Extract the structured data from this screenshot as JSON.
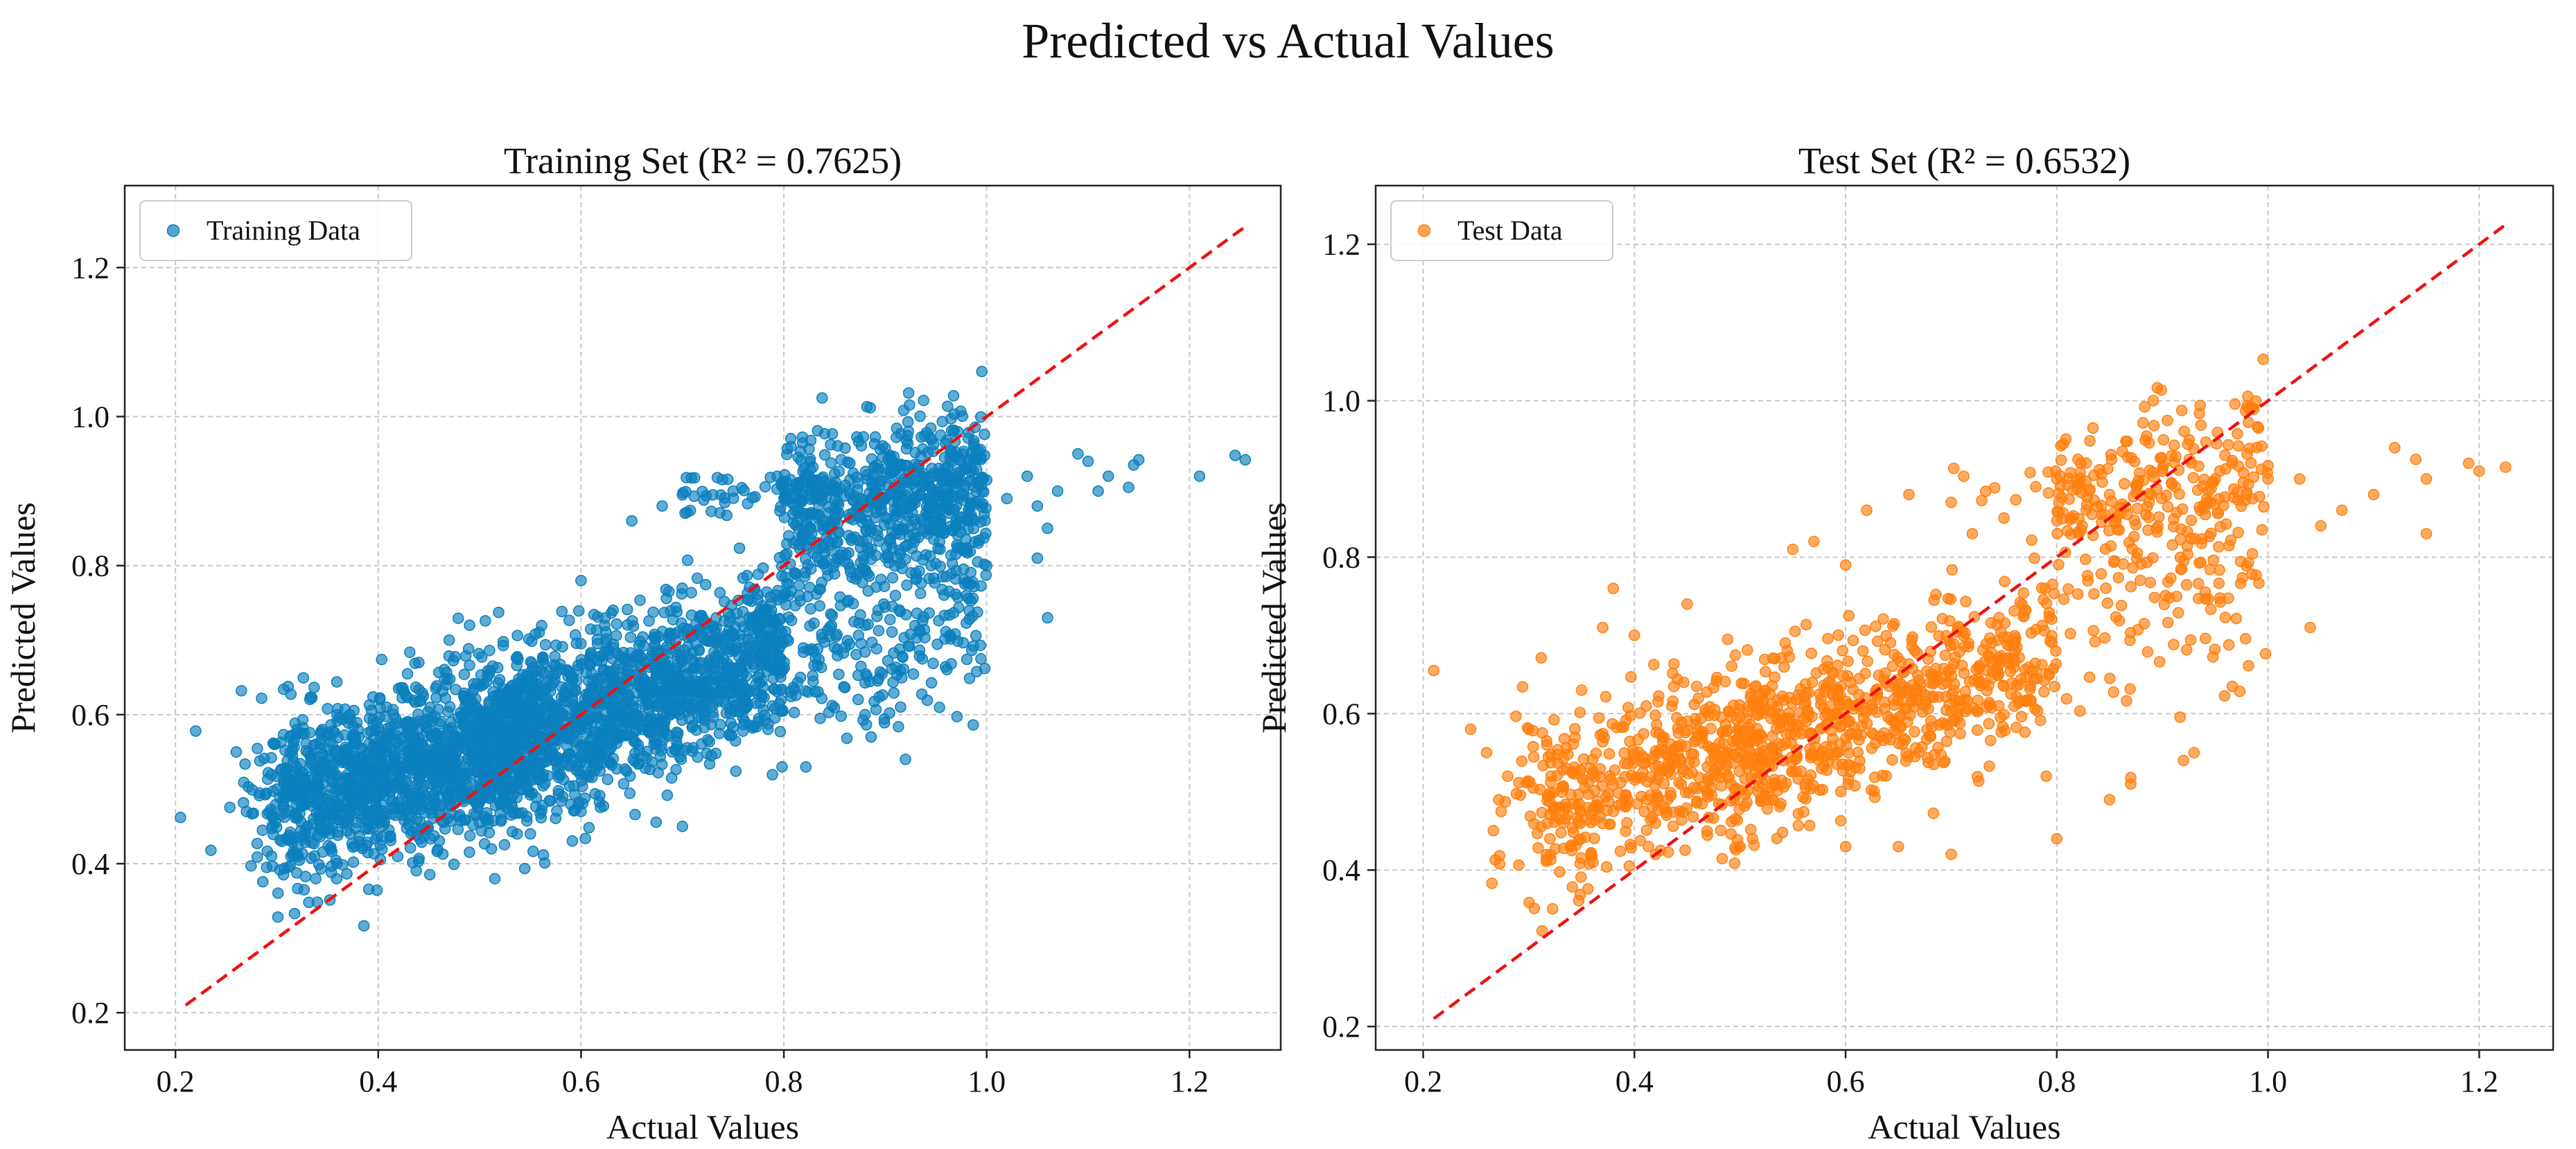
{
  "figure": {
    "title": "Predicted vs Actual Values"
  },
  "chart_data": [
    {
      "type": "scatter",
      "title": "Training Set (R² = 0.7625)",
      "xlabel": "Actual Values",
      "ylabel": "Predicted Values",
      "xlim": [
        0.15,
        1.29
      ],
      "ylim": [
        0.15,
        1.31
      ],
      "xticks": [
        0.2,
        0.4,
        0.6,
        0.8,
        1.0,
        1.2
      ],
      "yticks": [
        0.2,
        0.4,
        0.6,
        0.8,
        1.0,
        1.2
      ],
      "xtick_labels": [
        "0.2",
        "0.4",
        "0.6",
        "0.8",
        "1.0",
        "1.2"
      ],
      "ytick_labels": [
        "0.2",
        "0.4",
        "0.6",
        "0.8",
        "1.0",
        "1.2"
      ],
      "grid": true,
      "legend_position": "top-left",
      "series": [
        {
          "name": "Training Data",
          "color": "#0a7fbd",
          "points": [
            [
              0.205,
              0.462
            ],
            [
              0.22,
              0.578
            ],
            [
              0.235,
              0.418
            ],
            [
              0.26,
              0.55
            ],
            [
              0.265,
              0.632
            ],
            [
              0.285,
              0.622
            ],
            [
              0.305,
              0.43
            ],
            [
              0.29,
              0.395
            ],
            [
              0.32,
              0.58
            ],
            [
              0.36,
              0.608
            ],
            [
              0.27,
              0.47
            ],
            [
              0.3,
              0.5
            ],
            [
              0.33,
              0.45
            ],
            [
              0.38,
              0.58
            ],
            [
              0.42,
              0.635
            ],
            [
              0.44,
              0.67
            ],
            [
              0.47,
              0.7
            ],
            [
              0.49,
              0.72
            ],
            [
              0.5,
              0.455
            ],
            [
              0.55,
              0.44
            ],
            [
              0.6,
              0.47
            ],
            [
              0.7,
              0.45
            ],
            [
              0.65,
              0.86
            ],
            [
              0.68,
              0.88
            ],
            [
              0.7,
              0.895
            ],
            [
              0.73,
              0.895
            ],
            [
              0.75,
              0.9
            ],
            [
              0.6,
              0.78
            ],
            [
              0.8,
              0.89
            ],
            [
              0.85,
              0.9
            ],
            [
              0.9,
              0.93
            ],
            [
              0.95,
              0.92
            ],
            [
              1.0,
              0.915
            ],
            [
              1.02,
              0.89
            ],
            [
              1.05,
              0.88
            ],
            [
              1.06,
              0.85
            ],
            [
              1.07,
              0.9
            ],
            [
              1.09,
              0.95
            ],
            [
              1.1,
              0.94
            ],
            [
              1.11,
              0.9
            ],
            [
              1.12,
              0.92
            ],
            [
              1.14,
              0.905
            ],
            [
              1.145,
              0.935
            ],
            [
              1.15,
              0.942
            ],
            [
              1.05,
              0.81
            ],
            [
              1.06,
              0.73
            ],
            [
              1.0,
              0.8
            ],
            [
              0.98,
              0.76
            ],
            [
              0.93,
              0.79
            ],
            [
              0.92,
              0.54
            ],
            [
              0.88,
              0.6
            ],
            [
              0.85,
              0.69
            ],
            [
              0.88,
              0.72
            ],
            [
              0.91,
              0.76
            ],
            [
              1.21,
              0.92
            ],
            [
              1.245,
              0.948
            ],
            [
              1.255,
              0.942
            ],
            [
              0.97,
              0.88
            ],
            [
              0.99,
              0.9
            ],
            [
              1.04,
              0.92
            ]
          ]
        }
      ],
      "reference_line": {
        "from": [
          0.21,
          0.21
        ],
        "to": [
          1.255,
          1.255
        ],
        "color": "#ee1111",
        "style": "dashed"
      }
    },
    {
      "type": "scatter",
      "title": "Test Set (R² = 0.6532)",
      "xlabel": "Actual Values",
      "ylabel": "Predicted Values",
      "xlim": [
        0.155,
        1.27
      ],
      "ylim": [
        0.17,
        1.275
      ],
      "xticks": [
        0.2,
        0.4,
        0.6,
        0.8,
        1.0,
        1.2
      ],
      "yticks": [
        0.2,
        0.4,
        0.6,
        0.8,
        1.0,
        1.2
      ],
      "xtick_labels": [
        "0.2",
        "0.4",
        "0.6",
        "0.8",
        "1.0",
        "1.2"
      ],
      "ytick_labels": [
        "0.2",
        "0.4",
        "0.6",
        "0.8",
        "1.0",
        "1.2"
      ],
      "grid": true,
      "legend_position": "top-left",
      "series": [
        {
          "name": "Test Data",
          "color": "#ff7f0e",
          "points": [
            [
              0.21,
              0.655
            ],
            [
              0.245,
              0.58
            ],
            [
              0.26,
              0.55
            ],
            [
              0.28,
              0.52
            ],
            [
              0.3,
              0.58
            ],
            [
              0.32,
              0.44
            ],
            [
              0.35,
              0.63
            ],
            [
              0.37,
              0.71
            ],
            [
              0.38,
              0.76
            ],
            [
              0.4,
              0.7
            ],
            [
              0.42,
              0.42
            ],
            [
              0.45,
              0.74
            ],
            [
              0.5,
              0.43
            ],
            [
              0.55,
              0.81
            ],
            [
              0.57,
              0.82
            ],
            [
              0.6,
              0.79
            ],
            [
              0.62,
              0.86
            ],
            [
              0.66,
              0.88
            ],
            [
              0.7,
              0.87
            ],
            [
              0.72,
              0.83
            ],
            [
              0.75,
              0.85
            ],
            [
              0.78,
              0.89
            ],
            [
              0.8,
              0.9
            ],
            [
              0.82,
              0.925
            ],
            [
              0.85,
              0.88
            ],
            [
              0.9,
              0.91
            ],
            [
              0.95,
              0.9
            ],
            [
              0.98,
              0.88
            ],
            [
              1.0,
              0.9
            ],
            [
              1.03,
              0.9
            ],
            [
              1.04,
              0.71
            ],
            [
              1.05,
              0.84
            ],
            [
              1.07,
              0.86
            ],
            [
              1.1,
              0.88
            ],
            [
              1.12,
              0.94
            ],
            [
              1.14,
              0.925
            ],
            [
              1.15,
              0.9
            ],
            [
              1.15,
              0.83
            ],
            [
              1.19,
              0.92
            ],
            [
              1.2,
              0.91
            ],
            [
              1.225,
              0.915
            ],
            [
              0.92,
              0.54
            ],
            [
              0.93,
              0.55
            ],
            [
              0.87,
              0.51
            ],
            [
              0.85,
              0.49
            ],
            [
              0.79,
              0.52
            ],
            [
              0.8,
              0.44
            ],
            [
              0.7,
              0.42
            ],
            [
              0.65,
              0.43
            ],
            [
              0.6,
              0.43
            ]
          ]
        }
      ],
      "reference_line": {
        "from": [
          0.21,
          0.21
        ],
        "to": [
          1.225,
          1.225
        ],
        "color": "#ee1111",
        "style": "dashed"
      }
    }
  ]
}
